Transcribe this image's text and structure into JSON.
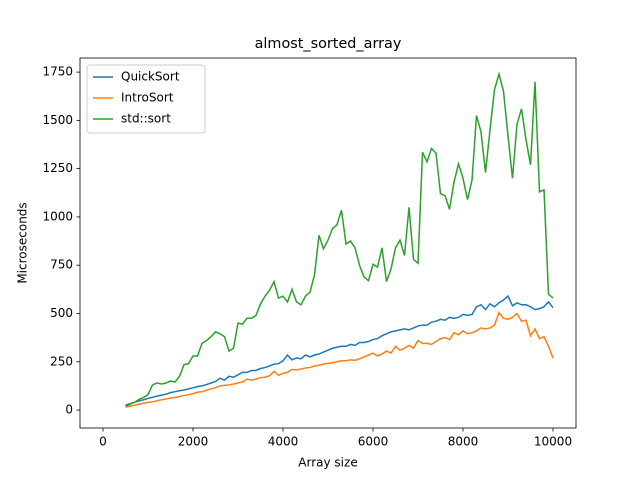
{
  "chart_data": {
    "type": "line",
    "title": "almost_sorted_array",
    "x_label": "Array size",
    "y_label": "Microseconds",
    "x": [
      500,
      600,
      700,
      800,
      900,
      1000,
      1100,
      1200,
      1300,
      1400,
      1500,
      1600,
      1700,
      1800,
      1900,
      2000,
      2100,
      2200,
      2300,
      2400,
      2500,
      2600,
      2700,
      2800,
      2900,
      3000,
      3100,
      3200,
      3300,
      3400,
      3500,
      3600,
      3700,
      3800,
      3900,
      4000,
      4100,
      4200,
      4300,
      4400,
      4500,
      4600,
      4700,
      4800,
      4900,
      5000,
      5100,
      5200,
      5300,
      5400,
      5500,
      5600,
      5700,
      5800,
      5900,
      6000,
      6100,
      6200,
      6300,
      6400,
      6500,
      6600,
      6700,
      6800,
      6900,
      7000,
      7100,
      7200,
      7300,
      7400,
      7500,
      7600,
      7700,
      7800,
      7900,
      8000,
      8100,
      8200,
      8300,
      8400,
      8500,
      8600,
      8700,
      8800,
      8900,
      9000,
      9100,
      9200,
      9300,
      9400,
      9500,
      9600,
      9700,
      9800,
      9900,
      10000
    ],
    "series": [
      {
        "name": "QuickSort",
        "color": "#1f77b4",
        "values": [
          25,
          33,
          40,
          47,
          53,
          60,
          66,
          72,
          77,
          82,
          90,
          95,
          100,
          104,
          110,
          115,
          121,
          125,
          132,
          140,
          148,
          165,
          155,
          175,
          170,
          182,
          195,
          195,
          205,
          205,
          215,
          220,
          228,
          238,
          240,
          255,
          285,
          260,
          270,
          265,
          285,
          275,
          285,
          290,
          300,
          310,
          320,
          325,
          330,
          330,
          340,
          335,
          350,
          350,
          355,
          365,
          370,
          385,
          395,
          405,
          410,
          415,
          420,
          415,
          425,
          435,
          440,
          440,
          455,
          460,
          470,
          465,
          480,
          475,
          480,
          495,
          490,
          495,
          535,
          545,
          520,
          550,
          535,
          555,
          570,
          590,
          540,
          555,
          545,
          545,
          535,
          520,
          525,
          535,
          560,
          530
        ]
      },
      {
        "name": "IntroSort",
        "color": "#ff7f0e",
        "values": [
          15,
          20,
          25,
          30,
          35,
          40,
          42,
          48,
          53,
          57,
          62,
          65,
          70,
          75,
          80,
          85,
          92,
          95,
          102,
          110,
          115,
          125,
          128,
          130,
          135,
          140,
          145,
          160,
          155,
          160,
          168,
          170,
          178,
          200,
          180,
          190,
          195,
          210,
          208,
          212,
          218,
          220,
          228,
          232,
          238,
          242,
          245,
          250,
          255,
          255,
          260,
          258,
          265,
          275,
          285,
          295,
          280,
          290,
          305,
          295,
          330,
          310,
          320,
          335,
          320,
          360,
          345,
          345,
          340,
          355,
          370,
          375,
          365,
          400,
          390,
          410,
          395,
          400,
          410,
          425,
          420,
          425,
          440,
          505,
          475,
          470,
          480,
          500,
          460,
          465,
          385,
          420,
          370,
          380,
          330,
          270
        ]
      },
      {
        "name": "std::sort",
        "color": "#2ca02c",
        "values": [
          20,
          30,
          40,
          55,
          65,
          80,
          130,
          140,
          135,
          140,
          150,
          145,
          175,
          235,
          240,
          280,
          280,
          345,
          360,
          380,
          405,
          395,
          380,
          305,
          320,
          450,
          445,
          475,
          475,
          490,
          550,
          590,
          620,
          665,
          580,
          590,
          560,
          625,
          560,
          545,
          590,
          610,
          700,
          905,
          835,
          880,
          940,
          960,
          1035,
          860,
          875,
          840,
          750,
          690,
          670,
          755,
          740,
          840,
          665,
          730,
          840,
          880,
          800,
          1050,
          780,
          760,
          1335,
          1285,
          1355,
          1330,
          1120,
          1110,
          1040,
          1180,
          1275,
          1200,
          1090,
          1190,
          1525,
          1440,
          1230,
          1450,
          1660,
          1740,
          1650,
          1420,
          1200,
          1480,
          1560,
          1400,
          1270,
          1700,
          1130,
          1140,
          600,
          580
        ]
      }
    ],
    "xlim": [
      -511,
      10511
    ],
    "ylim": [
      -93,
      1823
    ],
    "xticks": [
      0,
      2000,
      4000,
      6000,
      8000,
      10000
    ],
    "yticks": [
      0,
      250,
      500,
      750,
      1000,
      1250,
      1500,
      1750
    ],
    "legend": "upper left"
  }
}
